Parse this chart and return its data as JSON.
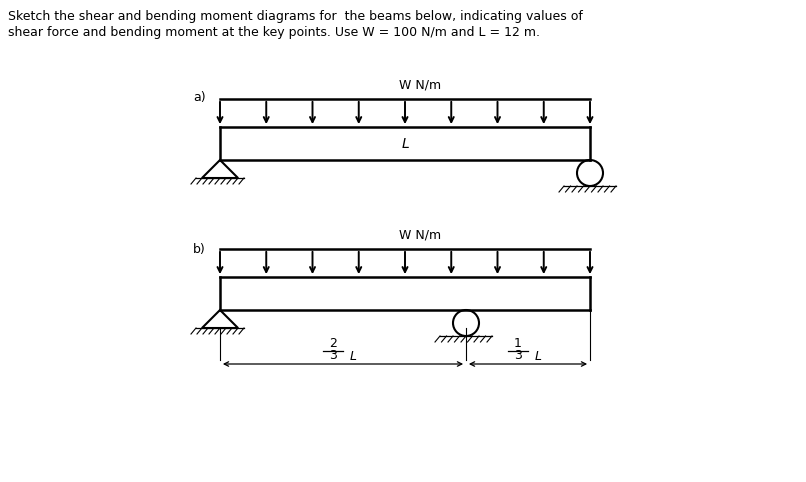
{
  "title_line1": "Sketch the shear and bending moment diagrams for  the beams below, indicating values of",
  "title_line2": "shear force and bending moment at the key points. Use W = 100 N/m and L = 12 m.",
  "label_a": "a)",
  "label_b": "b)",
  "load_label": "W N/m",
  "span_label": "L",
  "bg_color": "#ffffff",
  "num_arrows": 9,
  "beam_lw": 1.8,
  "support_lw": 1.5,
  "arrow_lw": 1.4
}
